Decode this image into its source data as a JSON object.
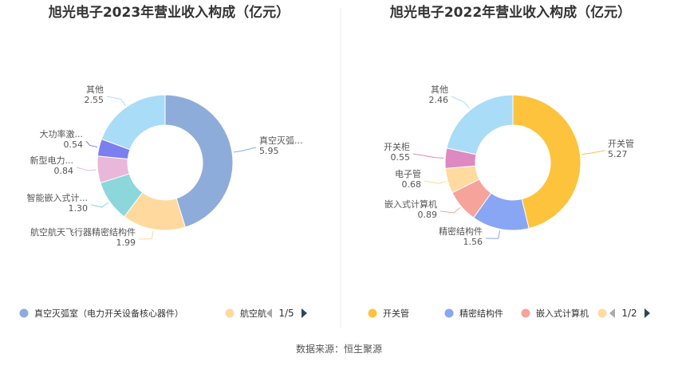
{
  "source": "数据来源：恒生聚源",
  "chart_data": [
    {
      "type": "pie",
      "title": "旭光电子2023年营业收入构成（亿元）",
      "slices": [
        {
          "label": "真空灭弧...",
          "legend": "真空灭弧室（电力开关设备核心器件）",
          "value": 5.95,
          "value_text": "5.95",
          "color": "#8eacd9"
        },
        {
          "label": "航空航天飞行器精密结构件",
          "legend": "航空航",
          "value": 1.99,
          "value_text": "1.99",
          "color": "#ffd99e"
        },
        {
          "label": "智能嵌入式计...",
          "legend": "",
          "value": 1.3,
          "value_text": "1.30",
          "color": "#8bd7dc"
        },
        {
          "label": "新型电力...",
          "legend": "",
          "value": 0.84,
          "value_text": "0.84",
          "color": "#e9b7d9"
        },
        {
          "label": "大功率激...",
          "legend": "",
          "value": 0.54,
          "value_text": "0.54",
          "color": "#7b7ff0"
        },
        {
          "label": "其他",
          "legend": "",
          "value": 2.55,
          "value_text": "2.55",
          "color": "#a9dcf7"
        }
      ],
      "legend_visible": 2,
      "pager": "1/5"
    },
    {
      "type": "pie",
      "title": "旭光电子2022年营业收入构成（亿元）",
      "slices": [
        {
          "label": "开关管",
          "legend": "开关管",
          "value": 5.27,
          "value_text": "5.27",
          "color": "#fec33d"
        },
        {
          "label": "精密结构件",
          "legend": "精密结构件",
          "value": 1.56,
          "value_text": "1.56",
          "color": "#89a6f5"
        },
        {
          "label": "嵌入式计算机",
          "legend": "嵌入式计算机",
          "value": 0.89,
          "value_text": "0.89",
          "color": "#f6a39c"
        },
        {
          "label": "电子管",
          "legend": "",
          "value": 0.68,
          "value_text": "0.68",
          "color": "#ffdb9f"
        },
        {
          "label": "开关柜",
          "legend": "",
          "value": 0.55,
          "value_text": "0.55",
          "color": "#de89c2"
        },
        {
          "label": "其他",
          "legend": "",
          "value": 2.46,
          "value_text": "2.46",
          "color": "#a9dcf7"
        }
      ],
      "legend_visible": 4,
      "pager": "1/2"
    }
  ]
}
